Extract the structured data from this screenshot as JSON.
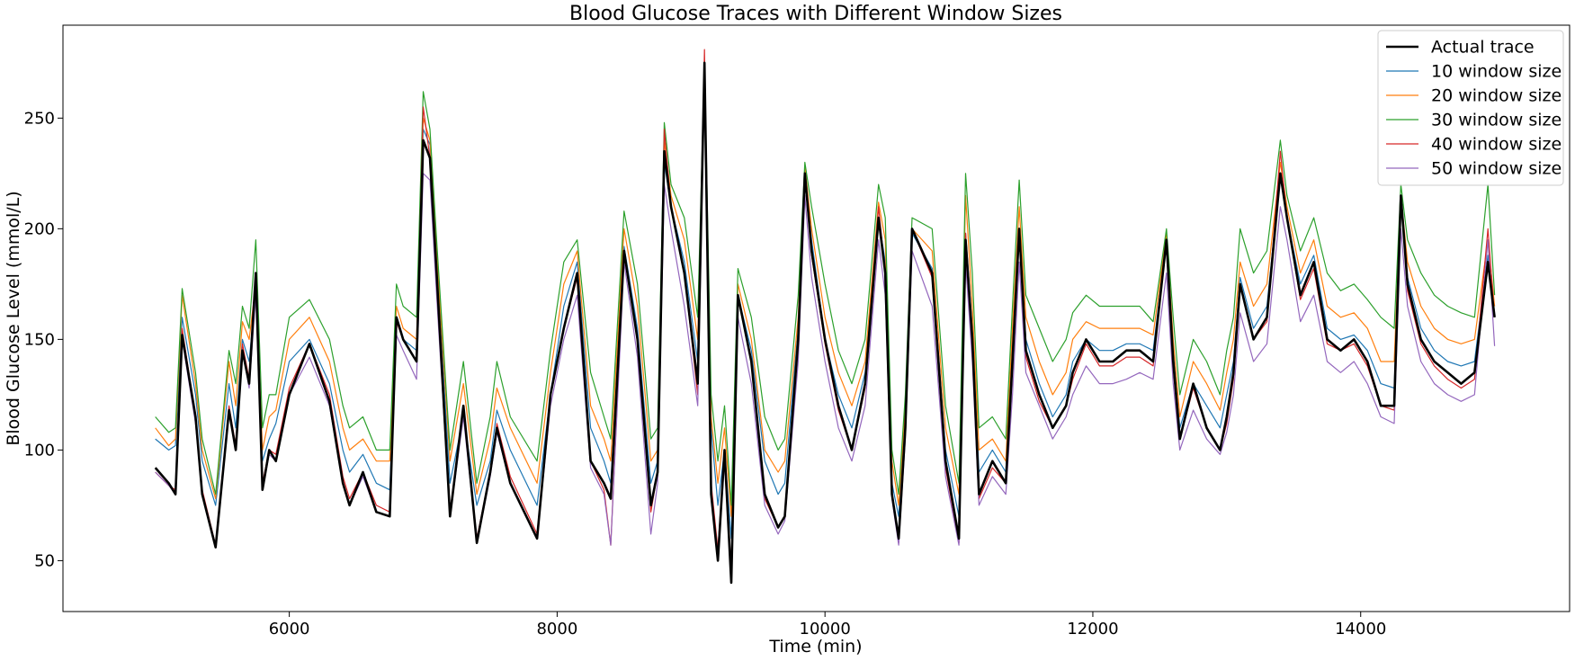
{
  "chart_data": {
    "type": "line",
    "title": "Blood Glucose Traces with Different Window Sizes",
    "xlabel": "Time (min)",
    "ylabel": "Blood Glucose Level (mmol/L)",
    "xlim": [
      4310,
      15560
    ],
    "ylim": [
      27,
      292
    ],
    "xticks": [
      6000,
      8000,
      10000,
      12000,
      14000
    ],
    "yticks": [
      50,
      100,
      150,
      200,
      250
    ],
    "grid": false,
    "legend_position": "top-right",
    "x": [
      5000,
      5100,
      5150,
      5200,
      5300,
      5350,
      5450,
      5550,
      5600,
      5650,
      5700,
      5750,
      5800,
      5850,
      5900,
      6000,
      6150,
      6300,
      6400,
      6450,
      6550,
      6650,
      6750,
      6800,
      6850,
      6950,
      7000,
      7050,
      7100,
      7200,
      7300,
      7400,
      7500,
      7550,
      7650,
      7850,
      7950,
      8050,
      8150,
      8250,
      8350,
      8400,
      8500,
      8600,
      8700,
      8750,
      8800,
      8850,
      8950,
      9050,
      9100,
      9150,
      9200,
      9250,
      9300,
      9350,
      9450,
      9550,
      9650,
      9700,
      9800,
      9850,
      9900,
      10000,
      10100,
      10200,
      10300,
      10400,
      10450,
      10500,
      10550,
      10600,
      10650,
      10800,
      10900,
      11000,
      11050,
      11100,
      11150,
      11250,
      11350,
      11400,
      11450,
      11500,
      11600,
      11700,
      11800,
      11850,
      11950,
      12050,
      12150,
      12250,
      12350,
      12450,
      12550,
      12600,
      12650,
      12750,
      12850,
      12950,
      13000,
      13050,
      13100,
      13200,
      13300,
      13400,
      13450,
      13550,
      13650,
      13750,
      13850,
      13950,
      14050,
      14150,
      14250,
      14300,
      14350,
      14450,
      14550,
      14650,
      14750,
      14850,
      14950,
      15000
    ],
    "series": [
      {
        "name": "Actual trace",
        "color": "#000000",
        "width": 2.6,
        "values": [
          92,
          85,
          80,
          152,
          115,
          80,
          56,
          118,
          100,
          145,
          130,
          180,
          82,
          100,
          95,
          125,
          148,
          122,
          85,
          75,
          90,
          72,
          70,
          160,
          150,
          140,
          240,
          232,
          180,
          70,
          120,
          58,
          90,
          110,
          85,
          60,
          125,
          155,
          180,
          95,
          85,
          78,
          190,
          150,
          75,
          90,
          235,
          210,
          180,
          130,
          275,
          80,
          50,
          100,
          40,
          170,
          140,
          80,
          65,
          70,
          150,
          225,
          190,
          150,
          120,
          100,
          130,
          205,
          180,
          80,
          60,
          110,
          200,
          180,
          95,
          60,
          195,
          150,
          80,
          95,
          85,
          140,
          200,
          145,
          125,
          110,
          120,
          135,
          150,
          140,
          140,
          145,
          145,
          140,
          195,
          140,
          105,
          130,
          110,
          100,
          115,
          135,
          175,
          150,
          160,
          225,
          205,
          170,
          185,
          150,
          145,
          150,
          140,
          120,
          120,
          215,
          175,
          150,
          140,
          135,
          130,
          135,
          185,
          160
        ]
      },
      {
        "name": "10 window size",
        "color": "#1f77b4",
        "width": 1.2,
        "values": [
          105,
          100,
          102,
          160,
          125,
          95,
          75,
          130,
          110,
          150,
          140,
          172,
          95,
          105,
          112,
          140,
          150,
          130,
          100,
          90,
          98,
          85,
          82,
          160,
          150,
          145,
          245,
          238,
          185,
          85,
          115,
          75,
          95,
          118,
          100,
          75,
          125,
          165,
          185,
          110,
          95,
          85,
          192,
          155,
          85,
          95,
          230,
          210,
          185,
          140,
          270,
          110,
          75,
          100,
          60,
          170,
          145,
          95,
          80,
          85,
          155,
          225,
          195,
          150,
          125,
          110,
          135,
          205,
          185,
          85,
          70,
          115,
          198,
          182,
          100,
          70,
          198,
          155,
          90,
          100,
          90,
          150,
          200,
          150,
          130,
          115,
          125,
          140,
          150,
          145,
          145,
          148,
          148,
          145,
          195,
          145,
          110,
          130,
          120,
          110,
          125,
          140,
          178,
          155,
          165,
          225,
          205,
          175,
          188,
          155,
          150,
          152,
          145,
          130,
          128,
          212,
          178,
          155,
          145,
          140,
          138,
          140,
          188,
          160
        ]
      },
      {
        "name": "20 window size",
        "color": "#ff7f0e",
        "width": 1.2,
        "values": [
          110,
          102,
          105,
          170,
          130,
          100,
          78,
          140,
          120,
          158,
          150,
          175,
          100,
          115,
          118,
          150,
          160,
          140,
          110,
          100,
          105,
          95,
          95,
          165,
          155,
          150,
          250,
          240,
          190,
          95,
          130,
          80,
          105,
          128,
          110,
          85,
          135,
          175,
          190,
          120,
          105,
          95,
          200,
          165,
          95,
          100,
          240,
          215,
          195,
          150,
          272,
          115,
          85,
          110,
          70,
          175,
          150,
          100,
          90,
          95,
          160,
          228,
          200,
          160,
          135,
          120,
          140,
          212,
          195,
          95,
          75,
          120,
          200,
          190,
          110,
          80,
          215,
          165,
          100,
          105,
          95,
          155,
          210,
          160,
          140,
          125,
          135,
          150,
          158,
          155,
          155,
          155,
          155,
          152,
          198,
          150,
          115,
          140,
          130,
          118,
          135,
          150,
          185,
          165,
          175,
          230,
          210,
          180,
          195,
          165,
          160,
          162,
          155,
          140,
          140,
          215,
          185,
          165,
          155,
          150,
          148,
          150,
          195,
          165
        ]
      },
      {
        "name": "30 window size",
        "color": "#2ca02c",
        "width": 1.2,
        "values": [
          115,
          108,
          110,
          173,
          135,
          105,
          80,
          145,
          130,
          165,
          155,
          195,
          110,
          125,
          125,
          160,
          168,
          150,
          120,
          110,
          115,
          100,
          100,
          175,
          165,
          160,
          262,
          245,
          195,
          100,
          140,
          85,
          115,
          140,
          115,
          95,
          145,
          185,
          195,
          135,
          115,
          105,
          208,
          175,
          105,
          110,
          248,
          220,
          205,
          160,
          275,
          125,
          95,
          120,
          75,
          182,
          160,
          115,
          100,
          105,
          170,
          230,
          210,
          175,
          145,
          130,
          150,
          220,
          205,
          100,
          80,
          125,
          205,
          200,
          120,
          85,
          225,
          180,
          110,
          115,
          105,
          165,
          222,
          170,
          155,
          140,
          150,
          162,
          170,
          165,
          165,
          165,
          165,
          158,
          200,
          160,
          125,
          150,
          140,
          125,
          145,
          160,
          200,
          180,
          190,
          240,
          215,
          190,
          205,
          180,
          172,
          175,
          168,
          160,
          155,
          220,
          195,
          180,
          170,
          165,
          162,
          160,
          220,
          170
        ]
      },
      {
        "name": "40 window size",
        "color": "#d62728",
        "width": 1.2,
        "values": [
          90,
          84,
          82,
          155,
          115,
          82,
          57,
          120,
          102,
          148,
          132,
          175,
          85,
          100,
          98,
          128,
          148,
          125,
          88,
          78,
          90,
          75,
          72,
          158,
          150,
          140,
          255,
          232,
          180,
          72,
          120,
          60,
          90,
          112,
          88,
          62,
          125,
          155,
          178,
          95,
          82,
          57,
          190,
          150,
          72,
          90,
          245,
          210,
          180,
          125,
          281,
          85,
          55,
          100,
          45,
          170,
          140,
          78,
          65,
          70,
          150,
          225,
          188,
          148,
          118,
          100,
          128,
          210,
          180,
          80,
          58,
          108,
          200,
          178,
          92,
          58,
          198,
          148,
          78,
          92,
          85,
          138,
          200,
          142,
          122,
          110,
          120,
          132,
          148,
          138,
          138,
          142,
          142,
          138,
          195,
          138,
          105,
          128,
          110,
          100,
          112,
          132,
          175,
          150,
          158,
          235,
          205,
          168,
          182,
          148,
          145,
          148,
          138,
          120,
          118,
          215,
          172,
          148,
          138,
          132,
          128,
          132,
          200,
          160
        ]
      },
      {
        "name": "50 window size",
        "color": "#9467bd",
        "width": 1.2,
        "values": [
          90,
          84,
          80,
          150,
          112,
          80,
          56,
          118,
          100,
          145,
          128,
          170,
          82,
          98,
          95,
          125,
          142,
          120,
          85,
          75,
          88,
          72,
          70,
          152,
          145,
          132,
          225,
          222,
          170,
          70,
          115,
          58,
          88,
          108,
          85,
          60,
          120,
          150,
          170,
          92,
          80,
          57,
          185,
          142,
          62,
          85,
          220,
          200,
          165,
          120,
          265,
          78,
          50,
          95,
          40,
          160,
          130,
          75,
          62,
          68,
          140,
          215,
          178,
          140,
          110,
          95,
          120,
          195,
          170,
          78,
          57,
          105,
          190,
          165,
          88,
          57,
          185,
          140,
          75,
          88,
          80,
          125,
          185,
          135,
          120,
          105,
          115,
          125,
          138,
          130,
          130,
          132,
          135,
          132,
          180,
          130,
          100,
          118,
          105,
          98,
          108,
          125,
          162,
          140,
          148,
          210,
          195,
          158,
          170,
          140,
          135,
          140,
          130,
          115,
          112,
          200,
          165,
          140,
          130,
          125,
          122,
          125,
          195,
          147
        ]
      }
    ]
  }
}
